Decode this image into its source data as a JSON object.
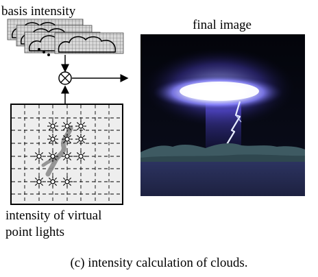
{
  "labels": {
    "basis": "basis intensity",
    "final": "final image",
    "vpl_line1": "intensity of virtual",
    "vpl_line2": "point lights",
    "caption": "(c) intensity calculation of clouds."
  },
  "colors": {
    "sky_top": "#05070f",
    "glow": "#ffffff",
    "glow_blue": "#6f6cff",
    "bolt": "#dfe6ff",
    "mountain": "#3e5a62",
    "water": "#2a2f55",
    "grid_gray": "#9a9a9a",
    "panel_fill": "#eeeeee",
    "lightning_path": "#8c8c8c"
  },
  "icons": {
    "multiply": "circle-times-icon",
    "light": "point-light-icon"
  }
}
